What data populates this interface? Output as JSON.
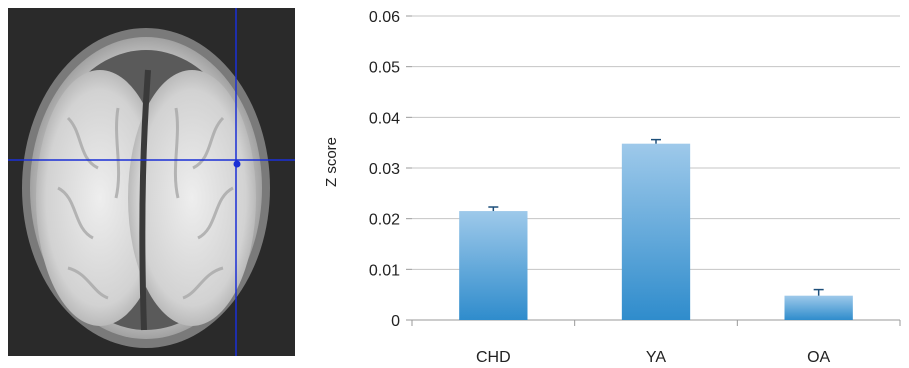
{
  "brain_panel": {
    "image": "axial-brain-mri",
    "crosshair_color": "#1a2fd6",
    "background_color": "#2a2a2a"
  },
  "chart_data": {
    "type": "bar",
    "categories": [
      "CHD",
      "YA",
      "OA"
    ],
    "values": [
      0.0215,
      0.0348,
      0.0048
    ],
    "errors": [
      0.0008,
      0.0008,
      0.0012
    ],
    "title": "",
    "xlabel": "",
    "ylabel": "Z score",
    "ylim": [
      0,
      0.06
    ],
    "yticks": [
      "0",
      "0.01",
      "0.02",
      "0.03",
      "0.04",
      "0.05",
      "0.06"
    ],
    "grid": true,
    "bar_color_top": "#9ec9ea",
    "bar_color_bottom": "#2f8ccc"
  }
}
